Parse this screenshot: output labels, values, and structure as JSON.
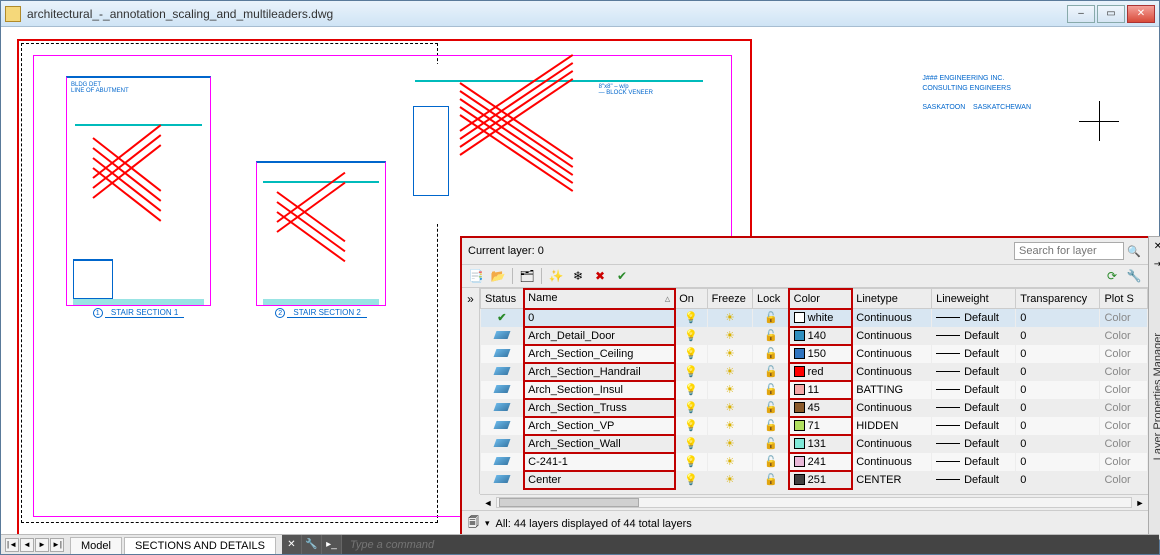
{
  "window": {
    "title": "architectural_-_annotation_scaling_and_multileaders.dwg"
  },
  "tabs": {
    "model": "Model",
    "layout": "SECTIONS AND DETAILS"
  },
  "command": {
    "placeholder": "Type a command"
  },
  "details": {
    "caption1_num": "1",
    "caption1": "STAIR SECTION 1",
    "caption2_num": "2",
    "caption2": "STAIR SECTION 2"
  },
  "titleblock": {
    "line1": "J### ENGINEERING INC.",
    "line2": "CONSULTING ENGINEERS",
    "line3": "SASKATOON",
    "line4": "SASKATCHEWAN"
  },
  "layerPanel": {
    "paletteTitle": "Layer Properties Manager",
    "currentLayerLabel": "Current layer: 0",
    "searchPlaceholder": "Search for layer",
    "status": "All: 44 layers displayed of 44 total layers",
    "columns": {
      "status": "Status",
      "name": "Name",
      "on": "On",
      "freeze": "Freeze",
      "lock": "Lock",
      "color": "Color",
      "linetype": "Linetype",
      "lineweight": "Lineweight",
      "transparency": "Transparency",
      "plot": "Plot S"
    },
    "rows": [
      {
        "current": true,
        "name": "0",
        "color": "white",
        "swatch": "#ffffff",
        "linetype": "Continuous",
        "lineweight": "Default",
        "transparency": "0",
        "plot": "Color"
      },
      {
        "current": false,
        "name": "Arch_Detail_Door",
        "color": "140",
        "swatch": "#2f8fbf",
        "linetype": "Continuous",
        "lineweight": "Default",
        "transparency": "0",
        "plot": "Color"
      },
      {
        "current": false,
        "name": "Arch_Section_Ceiling",
        "color": "150",
        "swatch": "#2f74bf",
        "linetype": "Continuous",
        "lineweight": "Default",
        "transparency": "0",
        "plot": "Color"
      },
      {
        "current": false,
        "name": "Arch_Section_Handrail",
        "color": "red",
        "swatch": "#ff0000",
        "linetype": "Continuous",
        "lineweight": "Default",
        "transparency": "0",
        "plot": "Color"
      },
      {
        "current": false,
        "name": "Arch_Section_Insul",
        "color": "11",
        "swatch": "#f4a6a6",
        "linetype": "BATTING",
        "lineweight": "Default",
        "transparency": "0",
        "plot": "Color"
      },
      {
        "current": false,
        "name": "Arch_Section_Truss",
        "color": "45",
        "swatch": "#8a5a2b",
        "linetype": "Continuous",
        "lineweight": "Default",
        "transparency": "0",
        "plot": "Color"
      },
      {
        "current": false,
        "name": "Arch_Section_VP",
        "color": "71",
        "swatch": "#b0e060",
        "linetype": "HIDDEN",
        "lineweight": "Default",
        "transparency": "0",
        "plot": "Color"
      },
      {
        "current": false,
        "name": "Arch_Section_Wall",
        "color": "131",
        "swatch": "#7fe8d8",
        "linetype": "Continuous",
        "lineweight": "Default",
        "transparency": "0",
        "plot": "Color"
      },
      {
        "current": false,
        "name": "C-241-1",
        "color": "241",
        "swatch": "#e8b8d8",
        "linetype": "Continuous",
        "lineweight": "Default",
        "transparency": "0",
        "plot": "Color"
      },
      {
        "current": false,
        "name": "Center",
        "color": "251",
        "swatch": "#404040",
        "linetype": "CENTER",
        "lineweight": "Default",
        "transparency": "0",
        "plot": "Color"
      }
    ]
  }
}
